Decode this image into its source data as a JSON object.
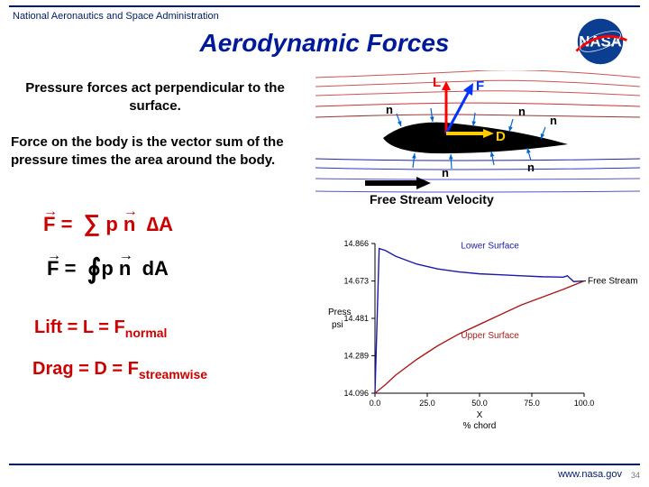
{
  "header": {
    "org": "National Aeronautics and Space Administration",
    "title": "Aerodynamic  Forces",
    "logo_bg": "#0b3d91",
    "logo_text": "NASA",
    "logo_swoosh": "#ff0000"
  },
  "text": {
    "para1": "Pressure  forces  act  perpendicular to  the  surface.",
    "para2": "Force on the body is the vector sum of the pressure times the area around  the  body."
  },
  "equations": {
    "sum_F": "F",
    "eq": "=",
    "sigma": "∑",
    "p": "p",
    "n": "n",
    "deltaA": "∆A",
    "int": "∮",
    "dA": "dA",
    "lift": "Lift  =  L  =  F",
    "lift_sub": "normal",
    "drag": "Drag =  D  =  F",
    "drag_sub": "streamwise"
  },
  "airfoil": {
    "L": "L",
    "F": "F",
    "D": "D",
    "n": "n",
    "free_stream": "Free  Stream Velocity",
    "streamline_colors_upper": [
      "#cc5555",
      "#cc5555",
      "#cc5555",
      "#cc3333",
      "#993333"
    ],
    "streamline_colors_lower": [
      "#2222aa",
      "#3333cc",
      "#5555cc",
      "#5555cc"
    ],
    "L_color": "#ff0000",
    "F_color": "#0033ff",
    "D_color": "#ffcc00",
    "n_arrow_color": "#0066cc",
    "airfoil_fill": "#000000"
  },
  "chart": {
    "type": "line",
    "xlabel": "X",
    "xlabel2": "% chord",
    "ylabel": "Press",
    "ylabel2": "psi",
    "xlim": [
      0,
      100
    ],
    "ylim": [
      14.096,
      14.866
    ],
    "xticks": [
      0.0,
      25.0,
      50.0,
      75.0,
      100.0
    ],
    "yticks": [
      14.096,
      14.289,
      14.481,
      14.673,
      14.866
    ],
    "lower_label": "Lower Surface",
    "upper_label": "Upper Surface",
    "free_label": "Free Stream",
    "lower_color": "#1a1aaa",
    "upper_color": "#aa1a1a",
    "axis_color": "#000000",
    "lower_data": [
      [
        0,
        14.096
      ],
      [
        2,
        14.84
      ],
      [
        5,
        14.83
      ],
      [
        10,
        14.8
      ],
      [
        20,
        14.76
      ],
      [
        30,
        14.735
      ],
      [
        40,
        14.72
      ],
      [
        50,
        14.71
      ],
      [
        60,
        14.705
      ],
      [
        70,
        14.7
      ],
      [
        80,
        14.695
      ],
      [
        85,
        14.694
      ],
      [
        90,
        14.693
      ],
      [
        92,
        14.7
      ],
      [
        95,
        14.67
      ],
      [
        100,
        14.673
      ]
    ],
    "upper_data": [
      [
        0,
        14.096
      ],
      [
        5,
        14.14
      ],
      [
        10,
        14.19
      ],
      [
        20,
        14.27
      ],
      [
        30,
        14.34
      ],
      [
        40,
        14.4
      ],
      [
        50,
        14.45
      ],
      [
        60,
        14.5
      ],
      [
        70,
        14.55
      ],
      [
        80,
        14.59
      ],
      [
        90,
        14.63
      ],
      [
        100,
        14.673
      ]
    ],
    "background": "#ffffff"
  },
  "footer": {
    "url": "www.nasa.gov",
    "page": "34"
  },
  "colors": {
    "nasa_blue": "#001a66",
    "eq_red": "#cc0000"
  }
}
